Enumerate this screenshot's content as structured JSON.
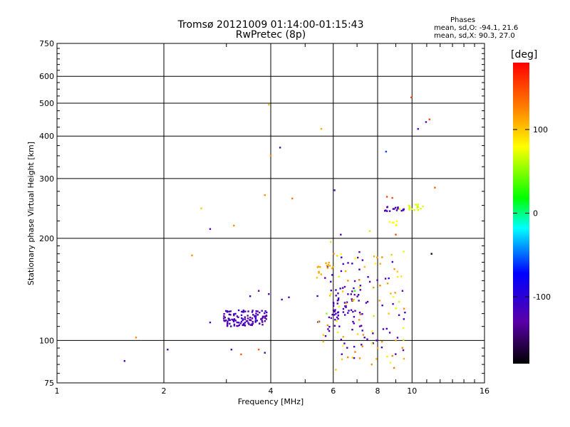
{
  "chart_data": {
    "type": "scatter",
    "title": "Tromsø 20121009 01:14:00-01:15:43",
    "subtitle": "RwPretec (8p)",
    "info_heading": "Phases",
    "info_lines": [
      "mean, sd,O: -94.1, 21.6",
      "mean, sd,X:  90.3, 27.0"
    ],
    "xlabel": "Frequency [MHz]",
    "ylabel": "Stationary phase Virtual Height [km]",
    "x_scale": "log2",
    "y_scale": "log",
    "xlim": [
      1,
      16
    ],
    "ylim": [
      75,
      750
    ],
    "x_ticks": [
      1,
      2,
      4,
      6,
      8,
      10,
      16
    ],
    "y_ticks": [
      75,
      100,
      200,
      300,
      400,
      500,
      600,
      750
    ],
    "grid": true,
    "colorbar": {
      "unit": "[deg]",
      "range": [
        -180,
        180
      ],
      "ticks": [
        100,
        0,
        -100
      ],
      "colors": [
        "#000000",
        "#5a00a8",
        "#0000ff",
        "#00ffff",
        "#00ff00",
        "#ffff00",
        "#ff8000",
        "#ff0000"
      ]
    },
    "points": [
      [
        1.55,
        87,
        -120
      ],
      [
        1.67,
        102,
        120
      ],
      [
        2.05,
        94,
        -120
      ],
      [
        2.4,
        178,
        120
      ],
      [
        2.55,
        245,
        100
      ],
      [
        2.7,
        113,
        -120
      ],
      [
        2.7,
        213,
        -120
      ],
      [
        3.1,
        94,
        -120
      ],
      [
        3.15,
        218,
        120
      ],
      [
        3.3,
        91,
        140
      ],
      [
        3.7,
        94,
        140
      ],
      [
        3.85,
        92,
        -120
      ],
      [
        3.85,
        268,
        120
      ],
      [
        3.95,
        495,
        100
      ],
      [
        4.0,
        350,
        120
      ],
      [
        4.25,
        370,
        -120
      ],
      [
        4.6,
        262,
        130
      ],
      [
        5.55,
        420,
        110
      ],
      [
        6.05,
        277,
        -120
      ],
      [
        6.3,
        205,
        -120
      ],
      [
        7.6,
        210,
        60
      ],
      [
        8.45,
        360,
        -60
      ],
      [
        8.5,
        265,
        150
      ],
      [
        8.8,
        263,
        150
      ],
      [
        9.0,
        205,
        150
      ],
      [
        9.95,
        520,
        150
      ],
      [
        10.4,
        420,
        -120
      ],
      [
        10.95,
        440,
        -120
      ],
      [
        11.2,
        448,
        150
      ],
      [
        11.35,
        180,
        -170
      ],
      [
        11.6,
        282,
        140
      ],
      [
        3.7,
        140,
        -120
      ],
      [
        3.95,
        137,
        -120
      ],
      [
        4.3,
        132,
        -120
      ],
      [
        4.5,
        134,
        -120
      ],
      [
        3.5,
        135,
        -110
      ],
      [
        6.4,
        168,
        -110
      ],
      [
        6.5,
        160,
        110
      ],
      [
        6.6,
        150,
        120
      ],
      [
        6.9,
        140,
        30
      ],
      [
        7.1,
        115,
        120
      ],
      [
        7.5,
        130,
        -120
      ],
      [
        7.8,
        118,
        60
      ],
      [
        8.0,
        95,
        110
      ],
      [
        8.3,
        108,
        -120
      ],
      [
        8.6,
        120,
        100
      ],
      [
        9.0,
        100,
        110
      ],
      [
        9.2,
        130,
        90
      ],
      [
        9.4,
        140,
        -120
      ],
      [
        6.1,
        82,
        100
      ],
      [
        6.35,
        88,
        100
      ],
      [
        6.8,
        89,
        100
      ],
      [
        7.7,
        85,
        120
      ],
      [
        8.9,
        83,
        130
      ],
      [
        8.7,
        86,
        80
      ],
      [
        5.4,
        153,
        100
      ],
      [
        5.45,
        165,
        110
      ],
      [
        5.9,
        195,
        60
      ],
      [
        5.75,
        120,
        50
      ],
      [
        5.8,
        108,
        -120
      ],
      [
        6.15,
        117,
        -120
      ],
      [
        6.45,
        98,
        -120
      ],
      [
        7.25,
        96,
        120
      ],
      [
        7.35,
        102,
        -120
      ],
      [
        7.95,
        100,
        -120
      ]
    ]
  }
}
